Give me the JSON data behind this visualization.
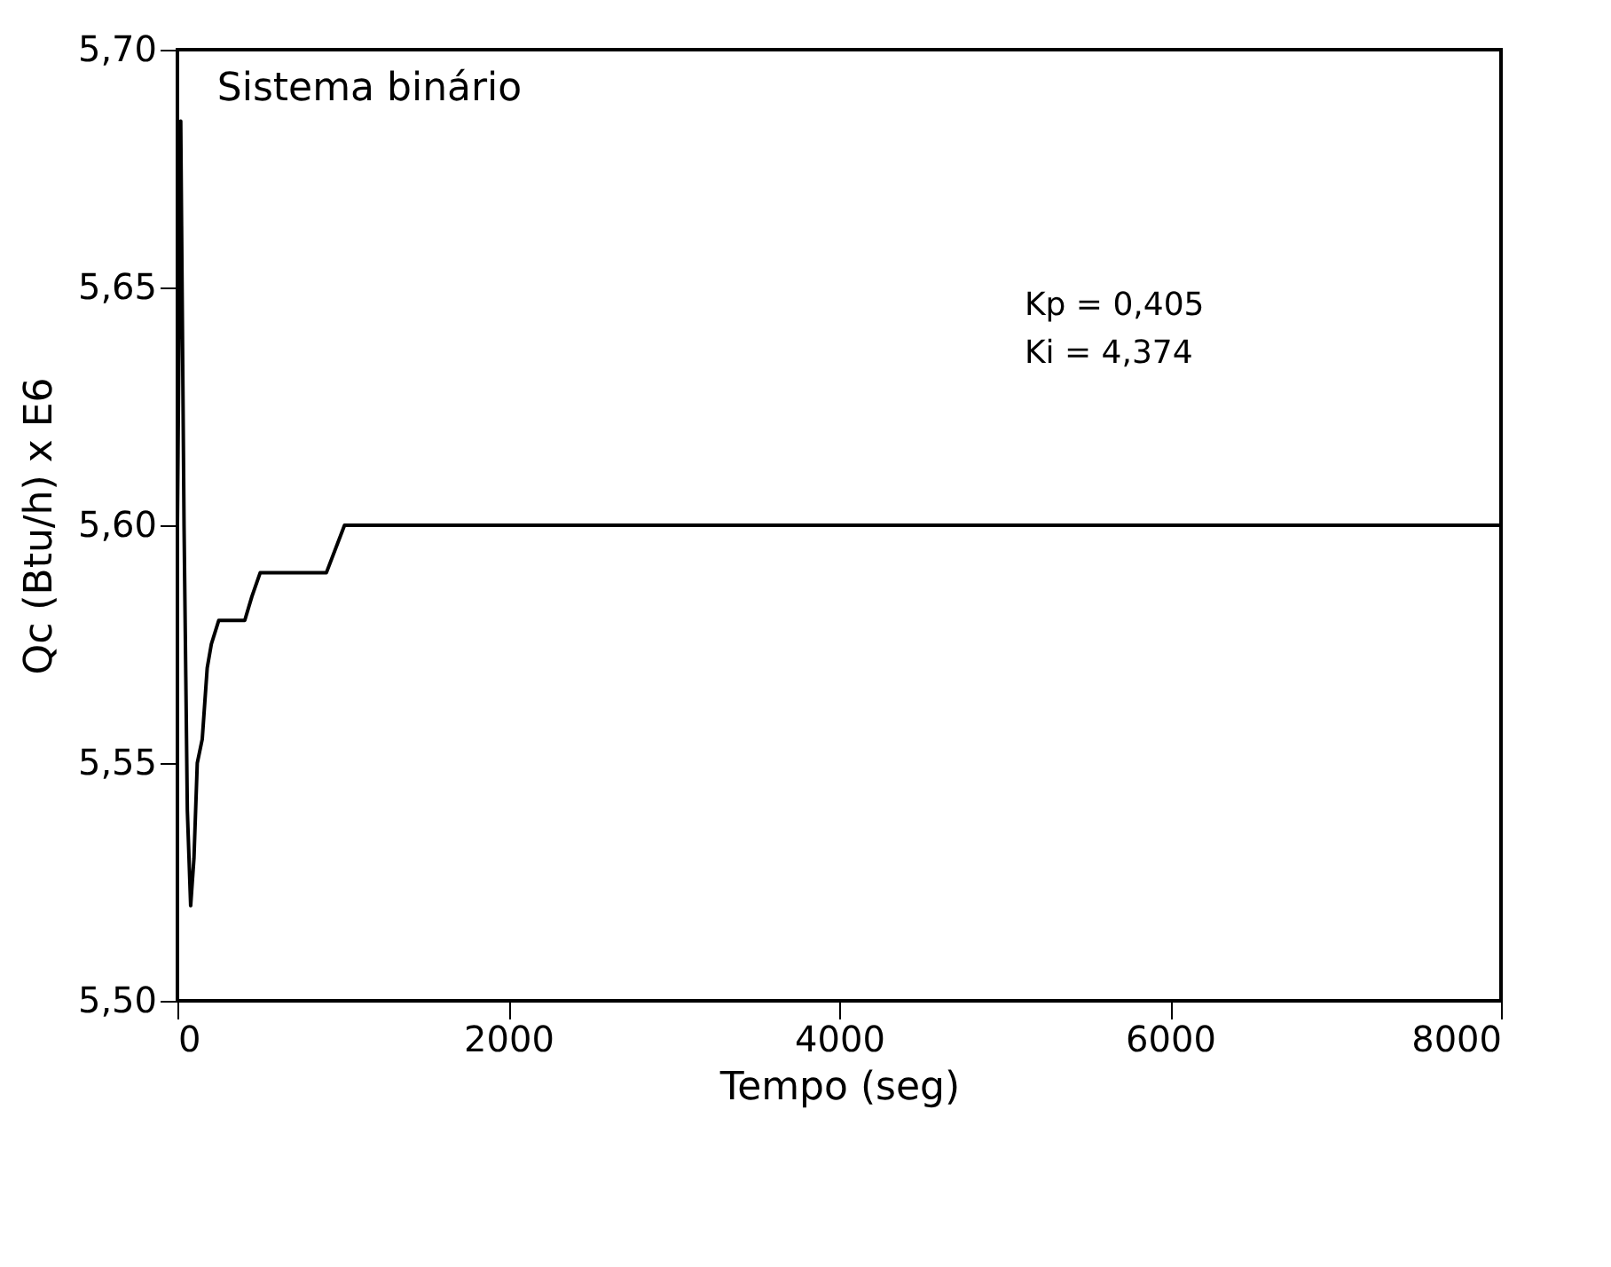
{
  "chart_data": {
    "type": "line",
    "xlabel": "Tempo (seg)",
    "ylabel": "Qc (Btu/h) x E6",
    "annotations": [
      "Sistema binário",
      "Kp = 0,405",
      "Ki = 4,374"
    ],
    "x": [
      0,
      20,
      40,
      60,
      80,
      100,
      120,
      150,
      180,
      205,
      250,
      300,
      407,
      450,
      500,
      900,
      1010,
      8000
    ],
    "values": [
      5.6,
      5.685,
      5.6,
      5.54,
      5.52,
      5.53,
      5.55,
      5.555,
      5.57,
      5.575,
      5.58,
      5.58,
      5.58,
      5.585,
      5.59,
      5.59,
      5.6,
      5.6
    ],
    "color": "#000000",
    "xlim": [
      0,
      8000
    ],
    "xticks": [
      0,
      2000,
      4000,
      6000,
      8000
    ],
    "ylim": [
      5.5,
      5.7
    ],
    "yticks": [
      {
        "value": 5.5,
        "label": "5,50"
      },
      {
        "value": 5.55,
        "label": "5,55"
      },
      {
        "value": 5.6,
        "label": "5,60"
      },
      {
        "value": 5.65,
        "label": "5,65"
      },
      {
        "value": 5.7,
        "label": "5,70"
      }
    ],
    "grid": false,
    "marker": "none",
    "line_style": "solid"
  }
}
